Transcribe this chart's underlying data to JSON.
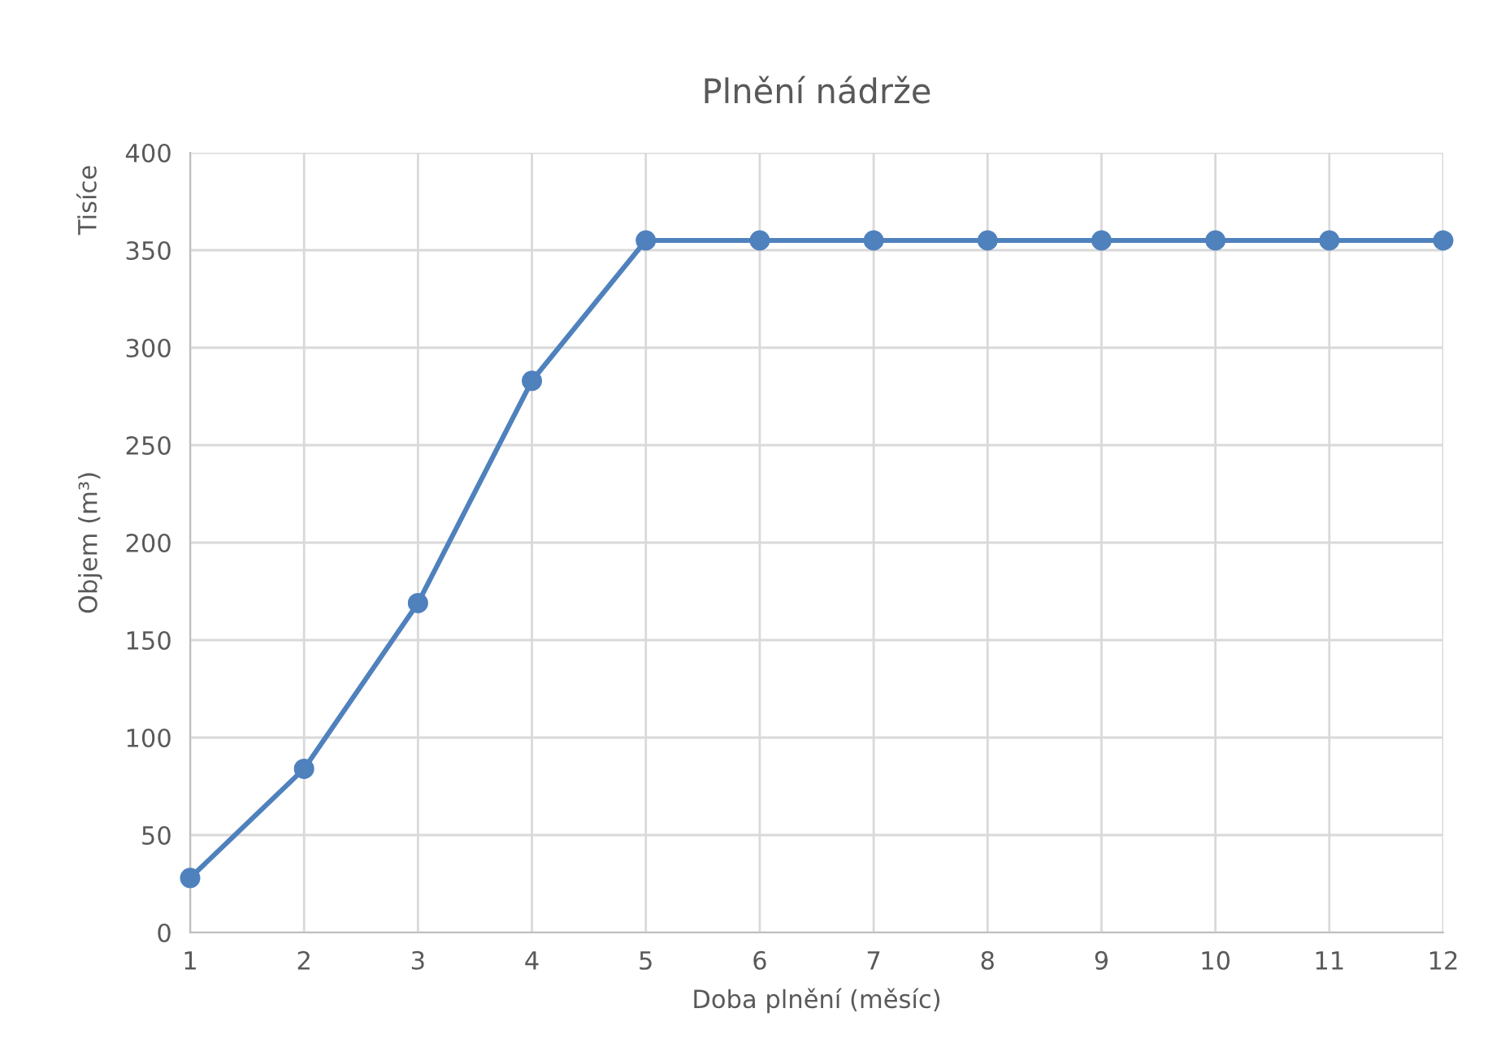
{
  "chart_data": {
    "type": "line",
    "title": "Plnění nádrže",
    "xlabel": "Doba plnění (měsíc)",
    "ylabel": "Objem (m³)",
    "annotations": [
      "Tisíce"
    ],
    "x": [
      1,
      2,
      3,
      4,
      5,
      6,
      7,
      8,
      9,
      10,
      11,
      12
    ],
    "series": [
      {
        "color": "#4f81bd",
        "values": [
          28,
          84,
          169,
          283,
          355,
          355,
          355,
          355,
          355,
          355,
          355,
          355
        ]
      }
    ],
    "xlim": [
      1,
      12
    ],
    "xticks": [
      1,
      2,
      3,
      4,
      5,
      6,
      7,
      8,
      9,
      10,
      11,
      12
    ],
    "ylim": [
      0,
      400
    ],
    "yticks": [
      0,
      50,
      100,
      150,
      200,
      250,
      300,
      350,
      400
    ],
    "grid": true,
    "marker": "circle",
    "line_style": "solid"
  }
}
